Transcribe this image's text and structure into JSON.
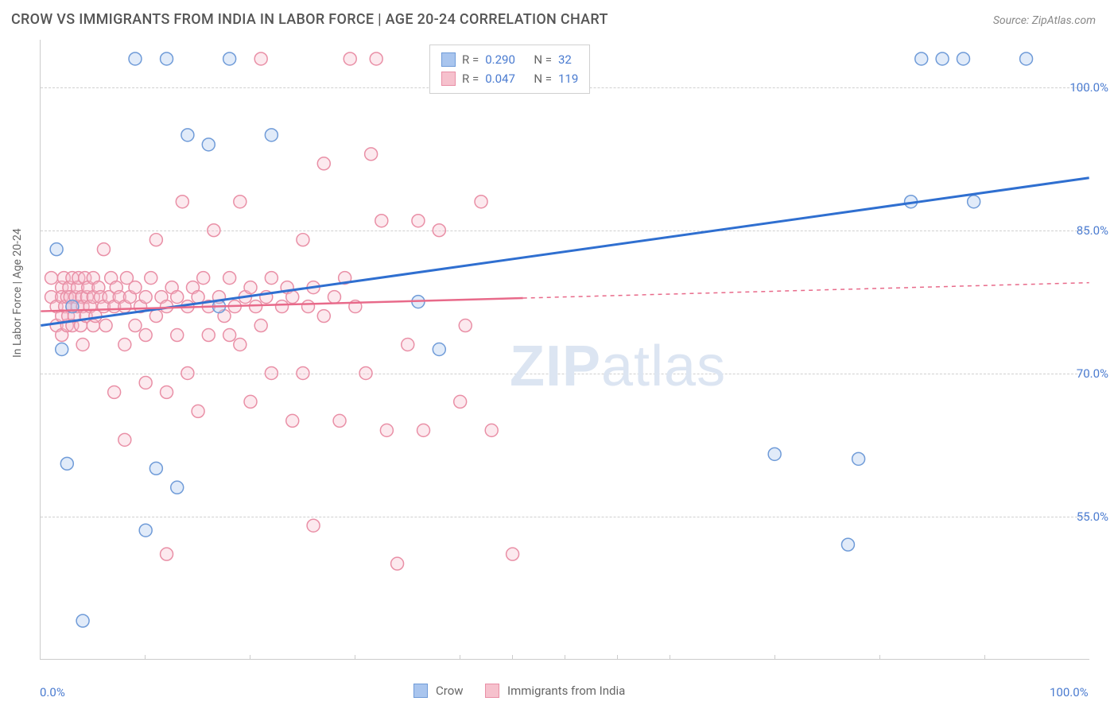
{
  "title": "CROW VS IMMIGRANTS FROM INDIA IN LABOR FORCE | AGE 20-24 CORRELATION CHART",
  "source": "Source: ZipAtlas.com",
  "ylabel": "In Labor Force | Age 20-24",
  "watermark_bold": "ZIP",
  "watermark_light": "atlas",
  "chart": {
    "type": "scatter",
    "xlim": [
      0,
      100
    ],
    "ylim": [
      40,
      105
    ],
    "x_ticks": [
      0,
      100
    ],
    "x_tick_labels": [
      "0.0%",
      "100.0%"
    ],
    "x_minor_ticks": [
      10,
      20,
      30,
      40,
      45,
      50,
      55,
      60,
      70,
      80,
      90
    ],
    "y_ticks": [
      55,
      70,
      85,
      100
    ],
    "y_tick_labels": [
      "55.0%",
      "70.0%",
      "85.0%",
      "100.0%"
    ],
    "background_color": "#ffffff",
    "grid_color": "#d0d0d0",
    "grid_dash": "4,4",
    "marker_radius": 8,
    "marker_stroke_width": 1.5,
    "marker_fill_opacity": 0.35,
    "title_fontsize": 18,
    "label_fontsize": 14,
    "tick_fontsize": 15,
    "tick_color": "#4a7bd0",
    "series": [
      {
        "name": "Crow",
        "color_fill": "#a9c5ee",
        "color_stroke": "#6f9bd8",
        "r": 0.29,
        "n": 32,
        "trend": {
          "x1": 0,
          "y1": 75,
          "x2": 100,
          "y2": 90.5,
          "solid_until_x": 100,
          "stroke": "#2f6fd0",
          "stroke_width": 3
        },
        "points": [
          [
            1.5,
            83
          ],
          [
            2,
            72.5
          ],
          [
            2.5,
            60.5
          ],
          [
            3,
            77
          ],
          [
            4,
            44
          ],
          [
            9,
            103
          ],
          [
            10,
            53.5
          ],
          [
            11,
            60
          ],
          [
            12,
            103
          ],
          [
            13,
            58
          ],
          [
            14,
            95
          ],
          [
            16,
            94
          ],
          [
            17,
            77
          ],
          [
            18,
            103
          ],
          [
            22,
            95
          ],
          [
            36,
            77.5
          ],
          [
            38,
            72.5
          ],
          [
            70,
            61.5
          ],
          [
            77,
            52
          ],
          [
            78,
            61
          ],
          [
            83,
            88
          ],
          [
            84,
            103
          ],
          [
            86,
            103
          ],
          [
            88,
            103
          ],
          [
            89,
            88
          ],
          [
            94,
            103
          ]
        ]
      },
      {
        "name": "Immigrants from India",
        "color_fill": "#f6c1cd",
        "color_stroke": "#e98fa6",
        "r": 0.047,
        "n": 119,
        "trend": {
          "x1": 0,
          "y1": 76.5,
          "x2": 100,
          "y2": 79.5,
          "solid_until_x": 46,
          "stroke": "#e86a8a",
          "stroke_width": 2.5
        },
        "points": [
          [
            1,
            78
          ],
          [
            1,
            80
          ],
          [
            1.5,
            77
          ],
          [
            1.5,
            75
          ],
          [
            2,
            79
          ],
          [
            2,
            76
          ],
          [
            2,
            74
          ],
          [
            2,
            78
          ],
          [
            2.2,
            80
          ],
          [
            2.3,
            77
          ],
          [
            2.5,
            78
          ],
          [
            2.5,
            75
          ],
          [
            2.6,
            76
          ],
          [
            2.7,
            79
          ],
          [
            2.8,
            78
          ],
          [
            3,
            77
          ],
          [
            3,
            80
          ],
          [
            3,
            75
          ],
          [
            3.2,
            76
          ],
          [
            3.3,
            78
          ],
          [
            3.5,
            79
          ],
          [
            3.5,
            77
          ],
          [
            3.6,
            80
          ],
          [
            3.8,
            75
          ],
          [
            3.9,
            78
          ],
          [
            4,
            77
          ],
          [
            4,
            73
          ],
          [
            4.2,
            80
          ],
          [
            4.3,
            76
          ],
          [
            4.4,
            78
          ],
          [
            4.5,
            79
          ],
          [
            4.7,
            77
          ],
          [
            5,
            78
          ],
          [
            5,
            80
          ],
          [
            5,
            75
          ],
          [
            5.2,
            76
          ],
          [
            5.5,
            79
          ],
          [
            5.7,
            78
          ],
          [
            6,
            77
          ],
          [
            6,
            83
          ],
          [
            6.2,
            75
          ],
          [
            6.5,
            78
          ],
          [
            6.7,
            80
          ],
          [
            7,
            77
          ],
          [
            7,
            68
          ],
          [
            7.2,
            79
          ],
          [
            7.5,
            78
          ],
          [
            8,
            73
          ],
          [
            8,
            77
          ],
          [
            8,
            63
          ],
          [
            8.2,
            80
          ],
          [
            8.5,
            78
          ],
          [
            9,
            75
          ],
          [
            9,
            79
          ],
          [
            9.5,
            77
          ],
          [
            10,
            69
          ],
          [
            10,
            78
          ],
          [
            10,
            74
          ],
          [
            10.5,
            80
          ],
          [
            11,
            76
          ],
          [
            11,
            84
          ],
          [
            11.5,
            78
          ],
          [
            12,
            68
          ],
          [
            12,
            77
          ],
          [
            12,
            51
          ],
          [
            12.5,
            79
          ],
          [
            13,
            74
          ],
          [
            13,
            78
          ],
          [
            13.5,
            88
          ],
          [
            14,
            70
          ],
          [
            14,
            77
          ],
          [
            14.5,
            79
          ],
          [
            15,
            66
          ],
          [
            15,
            78
          ],
          [
            15.5,
            80
          ],
          [
            16,
            74
          ],
          [
            16,
            77
          ],
          [
            16.5,
            85
          ],
          [
            17,
            78
          ],
          [
            17.5,
            76
          ],
          [
            18,
            74
          ],
          [
            18,
            80
          ],
          [
            18.5,
            77
          ],
          [
            19,
            88
          ],
          [
            19,
            73
          ],
          [
            19.5,
            78
          ],
          [
            20,
            67
          ],
          [
            20,
            79
          ],
          [
            20.5,
            77
          ],
          [
            21,
            103
          ],
          [
            21,
            75
          ],
          [
            21.5,
            78
          ],
          [
            22,
            70
          ],
          [
            22,
            80
          ],
          [
            23,
            77
          ],
          [
            23.5,
            79
          ],
          [
            24,
            65
          ],
          [
            24,
            78
          ],
          [
            25,
            84
          ],
          [
            25,
            70
          ],
          [
            25.5,
            77
          ],
          [
            26,
            54
          ],
          [
            26,
            79
          ],
          [
            27,
            92
          ],
          [
            27,
            76
          ],
          [
            28,
            78
          ],
          [
            28.5,
            65
          ],
          [
            29,
            80
          ],
          [
            29.5,
            103
          ],
          [
            30,
            77
          ],
          [
            31,
            70
          ],
          [
            31.5,
            93
          ],
          [
            32,
            103
          ],
          [
            32.5,
            86
          ],
          [
            33,
            64
          ],
          [
            34,
            50
          ],
          [
            35,
            73
          ],
          [
            36,
            86
          ],
          [
            36.5,
            64
          ],
          [
            38,
            85
          ],
          [
            38.5,
            103
          ],
          [
            40,
            67
          ],
          [
            40.5,
            75
          ],
          [
            42,
            88
          ],
          [
            43,
            64
          ],
          [
            44,
            103
          ],
          [
            45,
            51
          ],
          [
            46,
            103
          ]
        ]
      }
    ]
  },
  "legend_top": {
    "r_label": "R =",
    "n_label": "N ="
  },
  "legend_bottom": {
    "items": [
      "Crow",
      "Immigrants from India"
    ]
  }
}
